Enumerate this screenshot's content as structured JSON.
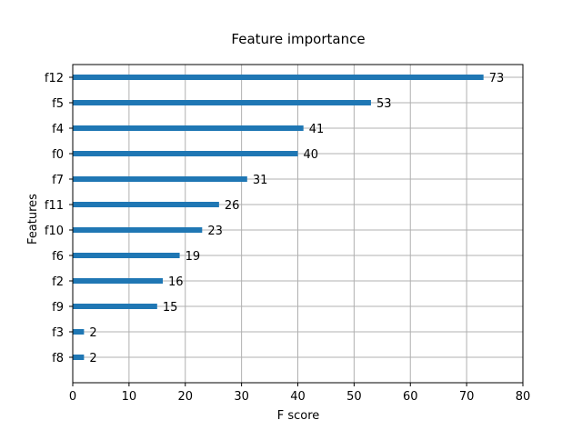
{
  "chart_data": {
    "type": "bar",
    "orientation": "horizontal",
    "title": "Feature importance",
    "xlabel": "F score",
    "ylabel": "Features",
    "xlim": [
      0,
      80
    ],
    "xticks": [
      0,
      10,
      20,
      30,
      40,
      50,
      60,
      70,
      80
    ],
    "grid": true,
    "bar_color": "#1f77b4",
    "categories": [
      "f12",
      "f5",
      "f4",
      "f0",
      "f7",
      "f11",
      "f10",
      "f6",
      "f2",
      "f9",
      "f3",
      "f8"
    ],
    "values": [
      73,
      53,
      41,
      40,
      31,
      26,
      23,
      19,
      16,
      15,
      2,
      2
    ]
  }
}
